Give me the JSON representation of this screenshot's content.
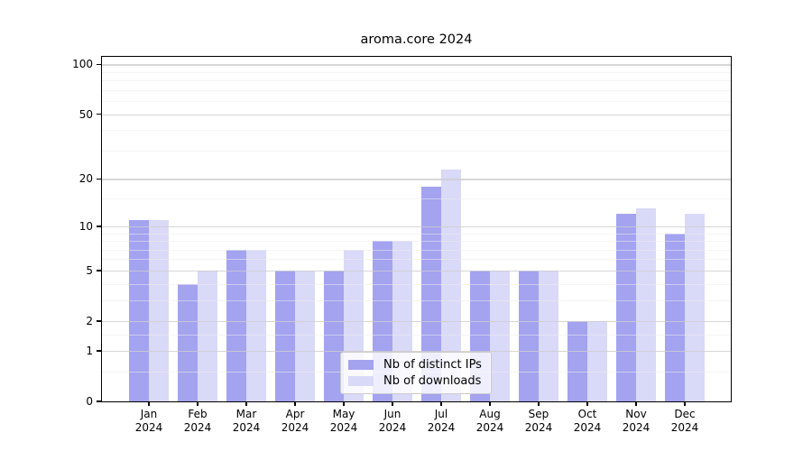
{
  "chart_data": {
    "type": "bar",
    "title": "aroma.core 2024",
    "months": [
      "Jan",
      "Feb",
      "Mar",
      "Apr",
      "May",
      "Jun",
      "Jul",
      "Aug",
      "Sep",
      "Oct",
      "Nov",
      "Dec"
    ],
    "year": "2024",
    "series": [
      {
        "name": "Nb of distinct IPs",
        "color": "#a3a3f0",
        "values": [
          11,
          4,
          7,
          5,
          5,
          8,
          18,
          5,
          5,
          2,
          12,
          9
        ]
      },
      {
        "name": "Nb of downloads",
        "color": "#d9d9f8",
        "values": [
          11,
          5,
          7,
          5,
          7,
          8,
          23,
          5,
          5,
          2,
          13,
          12
        ]
      }
    ],
    "y_axis": {
      "scale": "log10(1+x)",
      "ticks": [
        100,
        50,
        20,
        10,
        5,
        2,
        1,
        0
      ],
      "minor_ticks": [
        0.5,
        1.5,
        3,
        4,
        6,
        7,
        8,
        9,
        15,
        30,
        40,
        60,
        70,
        80,
        90
      ],
      "range": [
        0,
        111
      ],
      "grid": true
    },
    "legend": {
      "position": "bottom-center"
    },
    "colors": {
      "axis": "#000000",
      "grid_major": "#cdcdcd",
      "grid_minor": "#ececec",
      "background": "#ffffff"
    }
  }
}
